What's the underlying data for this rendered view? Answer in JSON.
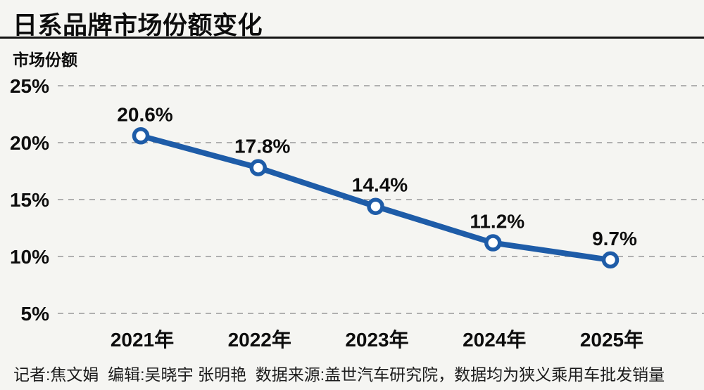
{
  "header": {
    "title": "日系品牌市场份额变化"
  },
  "footer": {
    "credits": "记者:焦文娟  编辑:吴晓宇 张明艳  数据来源:盖世汽车研究院，数据均为狭义乘用车批发销量"
  },
  "colors": {
    "background": "#f5f5f2",
    "line": "#1e5ca8",
    "marker_fill": "#ffffff",
    "grid": "#b0b0b0",
    "text": "#0d0d0d",
    "rule": "#141414"
  },
  "chart_data": {
    "type": "line",
    "title": "日系品牌市场份额变化",
    "xlabel": "",
    "ylabel": "市场份额",
    "categories": [
      "2021年",
      "2022年",
      "2023年",
      "2024年",
      "2025年"
    ],
    "values": [
      20.6,
      17.8,
      14.4,
      11.2,
      9.7
    ],
    "data_labels": [
      "20.6%",
      "17.8%",
      "14.4%",
      "11.2%",
      "9.7%"
    ],
    "y_ticks": [
      "25%",
      "20%",
      "15%",
      "10%",
      "5%"
    ],
    "y_tick_values": [
      25,
      20,
      15,
      10,
      5
    ],
    "ylim": [
      5,
      25
    ],
    "grid": "horizontal-dashed",
    "legend_position": "none"
  }
}
